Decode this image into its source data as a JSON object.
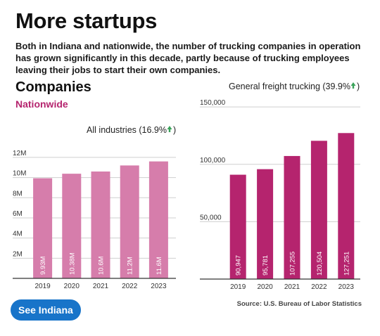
{
  "headline": "More startups",
  "intro": "Both in Indiana and nationwide, the number of trucking companies in operation has grown significantly in this decade, partly because of trucking employees leaving their jobs to start their own companies.",
  "section_title": "Companies",
  "scope_label": "Nationwide",
  "source": "Source: U.S. Bureau of Labor Statistics",
  "cta_label": "See Indiana",
  "colors": {
    "left_bar": "#d67dab",
    "right_bar": "#b5246e",
    "arrow": "#3aa35a",
    "scope": "#b5246e",
    "cta_bg": "#1874c9"
  },
  "chart_data": [
    {
      "type": "bar",
      "title": "All industries (16.9%",
      "title_icon": "up-arrow-icon",
      "categories": [
        "2019",
        "2020",
        "2021",
        "2022",
        "2023"
      ],
      "values": [
        9.93,
        10.38,
        10.6,
        11.2,
        11.6
      ],
      "bar_labels": [
        "9.93M",
        "10.38M",
        "10.6M",
        "11.2M",
        "11.6M"
      ],
      "y_ticks": [
        {
          "value": 2,
          "label": "2M"
        },
        {
          "value": 4,
          "label": "4M"
        },
        {
          "value": 6,
          "label": "6M"
        },
        {
          "value": 8,
          "label": "8M"
        },
        {
          "value": 10,
          "label": "10M"
        },
        {
          "value": 12,
          "label": "12M"
        }
      ],
      "ylim": [
        0,
        12.9
      ],
      "grid": true,
      "unit": "millions"
    },
    {
      "type": "bar",
      "title": "General freight trucking (39.9%",
      "title_icon": "up-arrow-icon",
      "categories": [
        "2019",
        "2020",
        "2021",
        "2022",
        "2023"
      ],
      "values": [
        90947,
        95781,
        107255,
        120504,
        127251
      ],
      "bar_labels": [
        "90,947",
        "95,781",
        "107,255",
        "120,504",
        "127,251"
      ],
      "y_ticks": [
        {
          "value": 50000,
          "label": "50,000"
        },
        {
          "value": 100000,
          "label": "100,000"
        },
        {
          "value": 150000,
          "label": "150,000"
        }
      ],
      "ylim": [
        0,
        155000
      ],
      "grid": true
    }
  ]
}
